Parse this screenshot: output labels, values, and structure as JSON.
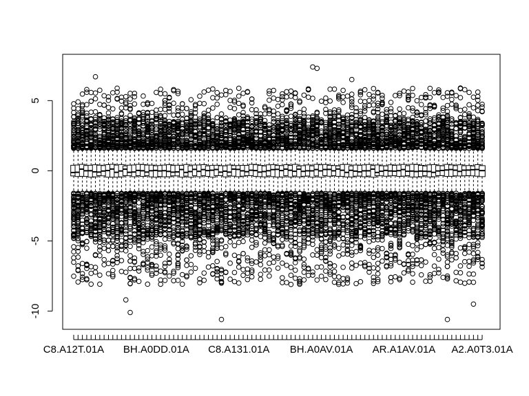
{
  "chart_data": {
    "type": "box",
    "title": "",
    "xlabel": "",
    "ylabel": "",
    "ylim": [
      -11.3,
      8.3
    ],
    "y_ticks": [
      -10,
      -5,
      0,
      5
    ],
    "n_boxes": 95,
    "x_tick_labels": [
      "C8.A12T.01A",
      "BH.A0DD.01A",
      "C8.A131.01A",
      "BH.A0AV.01A",
      "AR.A1AV.01A",
      "A2.A0T3.01A"
    ],
    "x_tick_label_positions": [
      1,
      20,
      39,
      58,
      77,
      96
    ],
    "box_summary": {
      "median": 0.0,
      "q1": -0.4,
      "q3": 0.4,
      "whisker_low": -1.6,
      "whisker_high": 1.6
    },
    "outliers": {
      "dense_high_band": [
        1.6,
        3.5
      ],
      "dense_low_band": [
        -4.5,
        -1.6
      ],
      "max_observed": 7.4,
      "min_observed": -10.6
    },
    "grid": false,
    "legend": "none"
  }
}
